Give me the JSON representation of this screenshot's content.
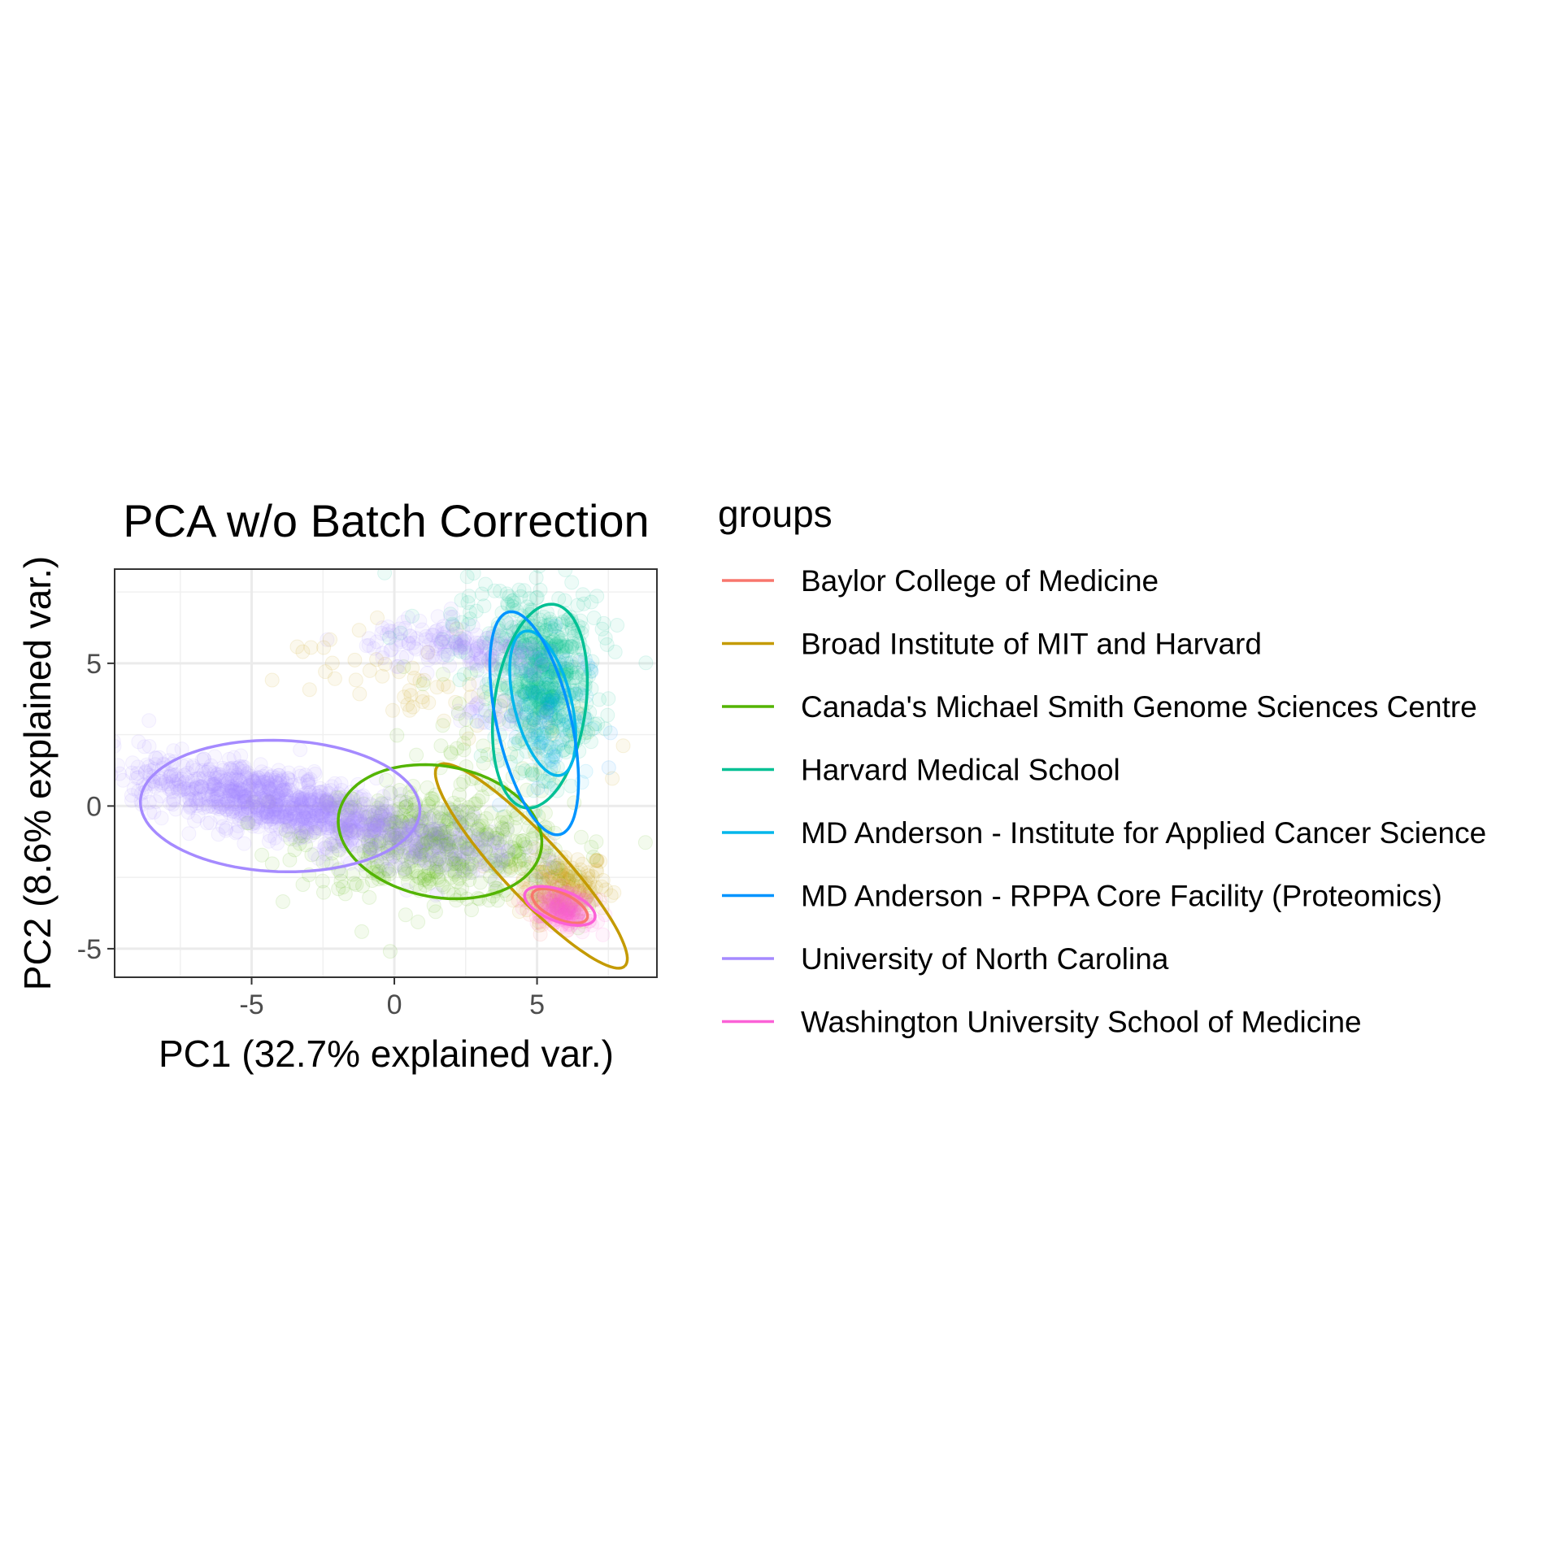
{
  "chart_data": {
    "type": "scatter",
    "title": "PCA w/o Batch Correction",
    "xlabel": "PC1 (32.7% explained var.)",
    "ylabel": "PC2 (8.6% explained var.)",
    "xlim": [
      -9.8,
      9.2
    ],
    "ylim": [
      -6.0,
      8.3
    ],
    "xticks": [
      -5,
      0,
      5
    ],
    "yticks": [
      -5,
      0,
      5
    ],
    "xtick_labels": [
      "-5",
      "0",
      "5"
    ],
    "ytick_labels": [
      "-5",
      "0",
      "5"
    ],
    "grid": true,
    "legend": {
      "title": "groups",
      "placement": "right"
    },
    "series": [
      {
        "name": "Baylor College of Medicine",
        "color": "#F8766D",
        "clusters": [
          {
            "cx": 5.6,
            "cy": -3.4,
            "sx": 0.6,
            "sy": 0.45,
            "rot": -15,
            "n": 30
          }
        ],
        "ellipse": {
          "cx": 5.8,
          "cy": -3.5,
          "rx": 1.05,
          "ry": 0.45,
          "angle": -25
        }
      },
      {
        "name": "Broad Institute of MIT and Harvard",
        "color": "#C49A00",
        "clusters": [
          {
            "cx": 5.9,
            "cy": -2.8,
            "sx": 0.8,
            "sy": 0.6,
            "rot": 0,
            "n": 160
          },
          {
            "cx": 1.0,
            "cy": 3.8,
            "sx": 2.6,
            "sy": 0.7,
            "rot": -12,
            "n": 40
          },
          {
            "cx": -1.0,
            "cy": 5.6,
            "sx": 1.5,
            "sy": 0.6,
            "rot": -8,
            "n": 14
          }
        ],
        "ellipse": {
          "cx": 4.8,
          "cy": -2.1,
          "rx": 4.8,
          "ry": 1.05,
          "angle": -47
        }
      },
      {
        "name": "Canada's Michael Smith Genome Sciences Centre",
        "color": "#53B400",
        "clusters": [
          {
            "cx": 1.5,
            "cy": -1.4,
            "sx": 2.3,
            "sy": 0.95,
            "rot": -5,
            "n": 500
          },
          {
            "cx": 3.0,
            "cy": 2.0,
            "sx": 1.6,
            "sy": 1.5,
            "rot": 0,
            "n": 60
          }
        ],
        "ellipse": {
          "cx": 1.6,
          "cy": -0.9,
          "rx": 3.6,
          "ry": 2.3,
          "angle": -10
        }
      },
      {
        "name": "Harvard Medical School",
        "color": "#00C094",
        "clusters": [
          {
            "cx": 5.3,
            "cy": 4.2,
            "sx": 0.8,
            "sy": 1.4,
            "rot": 0,
            "n": 500
          },
          {
            "cx": 4.2,
            "cy": 6.2,
            "sx": 1.6,
            "sy": 0.9,
            "rot": -10,
            "n": 120
          }
        ],
        "ellipse": {
          "cx": 5.1,
          "cy": 3.5,
          "rx": 1.6,
          "ry": 3.6,
          "angle": -8
        }
      },
      {
        "name": "MD Anderson - Institute for Applied Cancer Science",
        "color": "#00B6EB",
        "clusters": [
          {
            "cx": 5.4,
            "cy": 3.4,
            "sx": 0.7,
            "sy": 1.2,
            "rot": 0,
            "n": 60
          }
        ],
        "ellipse": {
          "cx": 5.2,
          "cy": 3.6,
          "rx": 1.0,
          "ry": 2.6,
          "angle": 14
        }
      },
      {
        "name": "MD Anderson - RPPA Core Facility (Proteomics)",
        "color": "#0094FF",
        "clusters": [
          {
            "cx": 5.0,
            "cy": 3.0,
            "sx": 0.9,
            "sy": 1.6,
            "rot": 0,
            "n": 40
          }
        ],
        "ellipse": {
          "cx": 4.9,
          "cy": 2.9,
          "rx": 1.3,
          "ry": 4.0,
          "angle": 13
        }
      },
      {
        "name": "University of North Carolina",
        "color": "#A58AFF",
        "clusters": [
          {
            "cx": -4.5,
            "cy": 0.2,
            "sx": 2.3,
            "sy": 0.55,
            "rot": -11,
            "n": 900
          },
          {
            "cx": 0.5,
            "cy": -1.1,
            "sx": 2.0,
            "sy": 0.6,
            "rot": -8,
            "n": 300
          },
          {
            "cx": 2.5,
            "cy": 5.5,
            "sx": 1.7,
            "sy": 0.4,
            "rot": -8,
            "n": 180
          },
          {
            "cx": 3.5,
            "cy": 3.2,
            "sx": 0.8,
            "sy": 0.4,
            "rot": 0,
            "n": 30
          }
        ],
        "ellipse": {
          "cx": -4.0,
          "cy": 0.0,
          "rx": 4.9,
          "ry": 2.3,
          "angle": -2
        }
      },
      {
        "name": "Washington University School of Medicine",
        "color": "#FB61D7",
        "clusters": [
          {
            "cx": 5.9,
            "cy": -3.6,
            "sx": 0.5,
            "sy": 0.3,
            "rot": -15,
            "n": 160
          }
        ],
        "ellipse": {
          "cx": 5.8,
          "cy": -3.5,
          "rx": 1.3,
          "ry": 0.55,
          "angle": -20
        }
      }
    ]
  }
}
